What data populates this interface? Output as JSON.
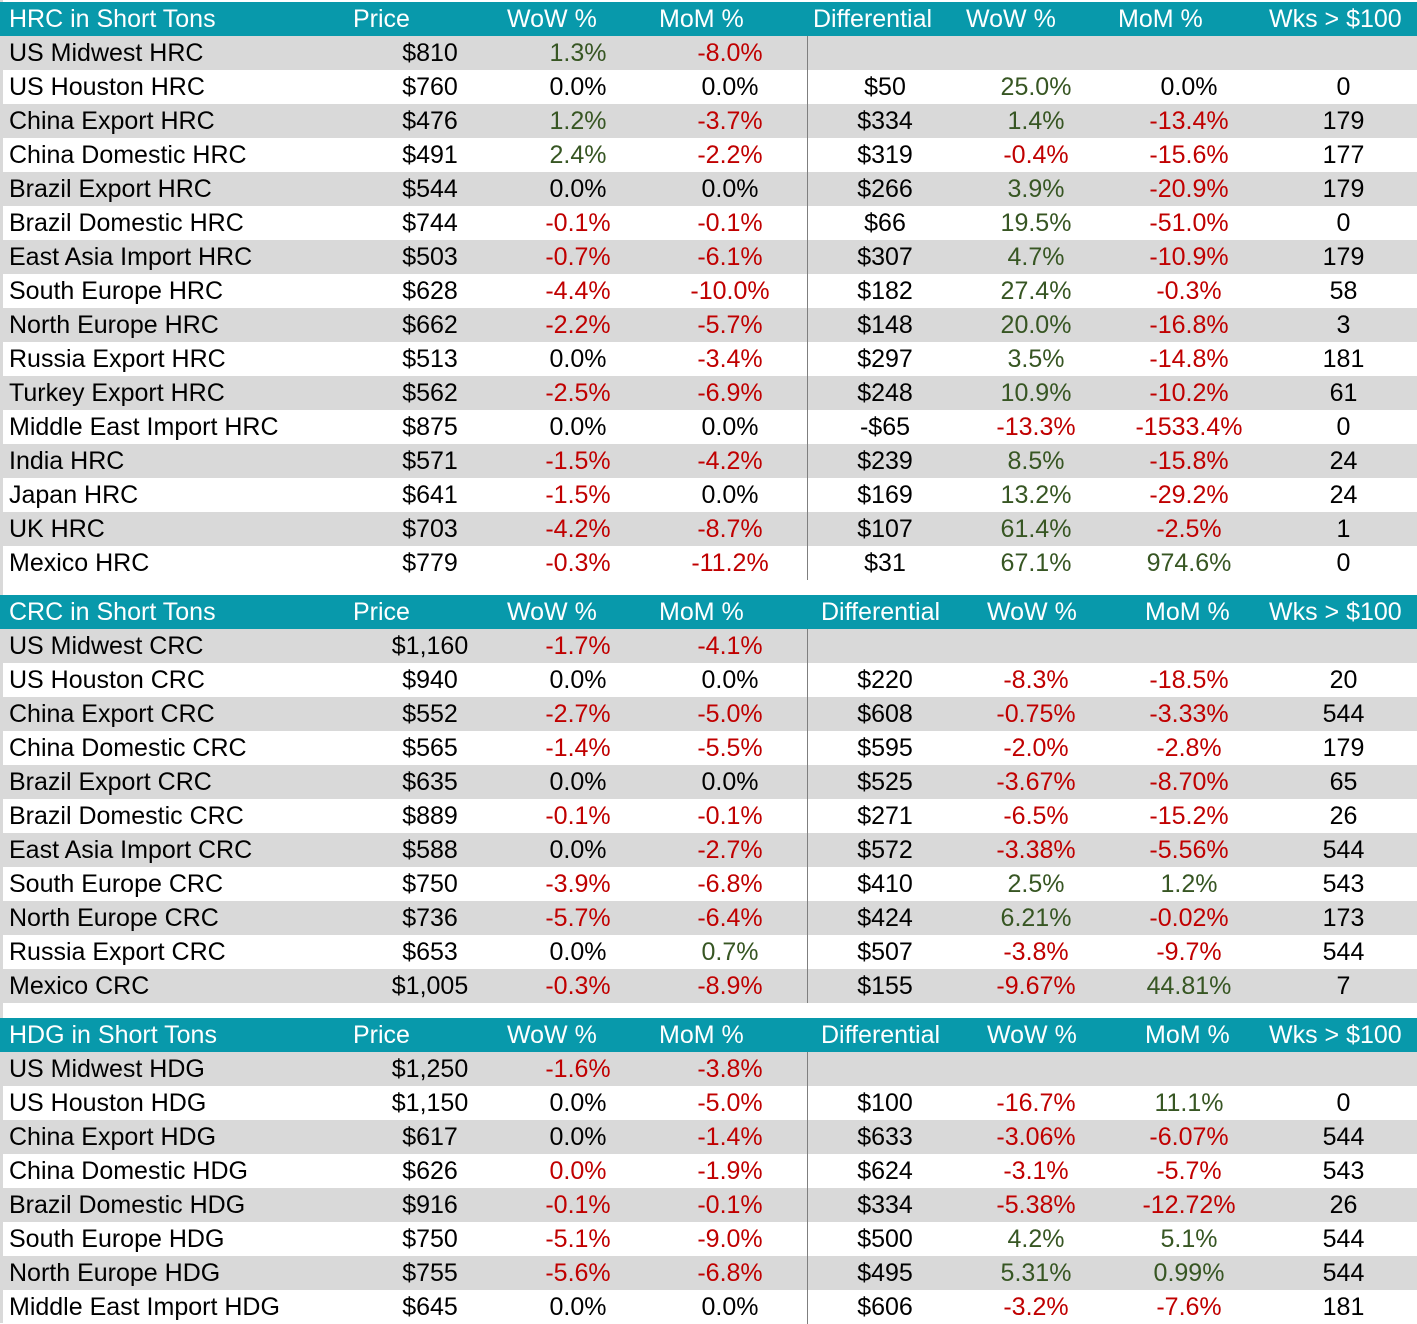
{
  "colors": {
    "header_bg": "#0899AB",
    "alt_row": "#d9d9d9",
    "positive": "#375623",
    "negative": "#c00000"
  },
  "columns": {
    "price": "Price",
    "wow": "WoW %",
    "mom": "MoM %",
    "differential": "Differential",
    "wow2": "WoW %",
    "mom2": "MoM %",
    "wks": "Wks > $100"
  },
  "hrc": {
    "title": "HRC in Short Tons",
    "rows": [
      {
        "name": "US Midwest HRC",
        "price": "$810",
        "wow": "1.3%",
        "mom": "-8.0%",
        "diff": "",
        "wow2": "",
        "mom2": "",
        "wks": ""
      },
      {
        "name": "US Houston HRC",
        "price": "$760",
        "wow": "0.0%",
        "mom": "0.0%",
        "diff": "$50",
        "wow2": "25.0%",
        "mom2": "0.0%",
        "wks": "0"
      },
      {
        "name": "China Export HRC",
        "price": "$476",
        "wow": "1.2%",
        "mom": "-3.7%",
        "diff": "$334",
        "wow2": "1.4%",
        "mom2": "-13.4%",
        "wks": "179"
      },
      {
        "name": "China Domestic HRC",
        "price": "$491",
        "wow": "2.4%",
        "mom": "-2.2%",
        "diff": "$319",
        "wow2": "-0.4%",
        "mom2": "-15.6%",
        "wks": "177"
      },
      {
        "name": "Brazil Export HRC",
        "price": "$544",
        "wow": "0.0%",
        "mom": "0.0%",
        "diff": "$266",
        "wow2": "3.9%",
        "mom2": "-20.9%",
        "wks": "179"
      },
      {
        "name": "Brazil Domestic HRC",
        "price": "$744",
        "wow": "-0.1%",
        "mom": "-0.1%",
        "diff": "$66",
        "wow2": "19.5%",
        "mom2": "-51.0%",
        "wks": "0"
      },
      {
        "name": "East Asia Import HRC",
        "price": "$503",
        "wow": "-0.7%",
        "mom": "-6.1%",
        "diff": "$307",
        "wow2": "4.7%",
        "mom2": "-10.9%",
        "wks": "179"
      },
      {
        "name": "South Europe HRC",
        "price": "$628",
        "wow": "-4.4%",
        "mom": "-10.0%",
        "diff": "$182",
        "wow2": "27.4%",
        "mom2": "-0.3%",
        "wks": "58"
      },
      {
        "name": "North Europe HRC",
        "price": "$662",
        "wow": "-2.2%",
        "mom": "-5.7%",
        "diff": "$148",
        "wow2": "20.0%",
        "mom2": "-16.8%",
        "wks": "3"
      },
      {
        "name": "Russia Export HRC",
        "price": "$513",
        "wow": "0.0%",
        "mom": "-3.4%",
        "diff": "$297",
        "wow2": "3.5%",
        "mom2": "-14.8%",
        "wks": "181"
      },
      {
        "name": "Turkey Export HRC",
        "price": "$562",
        "wow": "-2.5%",
        "mom": "-6.9%",
        "diff": "$248",
        "wow2": "10.9%",
        "mom2": "-10.2%",
        "wks": "61"
      },
      {
        "name": "Middle East Import HRC",
        "price": "$875",
        "wow": "0.0%",
        "mom": "0.0%",
        "diff": "-$65",
        "wow2": "-13.3%",
        "mom2": "-1533.4%",
        "wks": "0"
      },
      {
        "name": "India HRC",
        "price": "$571",
        "wow": "-1.5%",
        "mom": "-4.2%",
        "diff": "$239",
        "wow2": "8.5%",
        "mom2": "-15.8%",
        "wks": "24"
      },
      {
        "name": "Japan HRC",
        "price": "$641",
        "wow": "-1.5%",
        "mom": "0.0%",
        "diff": "$169",
        "wow2": "13.2%",
        "mom2": "-29.2%",
        "wks": "24"
      },
      {
        "name": "UK HRC",
        "price": "$703",
        "wow": "-4.2%",
        "mom": "-8.7%",
        "diff": "$107",
        "wow2": "61.4%",
        "mom2": "-2.5%",
        "wks": "1"
      },
      {
        "name": "Mexico HRC",
        "price": "$779",
        "wow": "-0.3%",
        "mom": "-11.2%",
        "diff": "$31",
        "wow2": "67.1%",
        "mom2": "974.6%",
        "wks": "0"
      }
    ]
  },
  "crc": {
    "title": "CRC in Short Tons",
    "rows": [
      {
        "name": "US Midwest CRC",
        "price": "$1,160",
        "wow": "-1.7%",
        "mom": "-4.1%",
        "diff": "",
        "wow2": "",
        "mom2": "",
        "wks": ""
      },
      {
        "name": "US Houston CRC",
        "price": "$940",
        "wow": "0.0%",
        "mom": "0.0%",
        "diff": "$220",
        "wow2": "-8.3%",
        "mom2": "-18.5%",
        "wks": "20"
      },
      {
        "name": "China Export CRC",
        "price": "$552",
        "wow": "-2.7%",
        "mom": "-5.0%",
        "diff": "$608",
        "wow2": "-0.75%",
        "mom2": "-3.33%",
        "wks": "544"
      },
      {
        "name": "China Domestic CRC",
        "price": "$565",
        "wow": "-1.4%",
        "mom": "-5.5%",
        "diff": "$595",
        "wow2": "-2.0%",
        "mom2": "-2.8%",
        "wks": "179"
      },
      {
        "name": "Brazil Export CRC",
        "price": "$635",
        "wow": "0.0%",
        "mom": "0.0%",
        "diff": "$525",
        "wow2": "-3.67%",
        "mom2": "-8.70%",
        "wks": "65"
      },
      {
        "name": "Brazil Domestic CRC",
        "price": "$889",
        "wow": "-0.1%",
        "mom": "-0.1%",
        "diff": "$271",
        "wow2": "-6.5%",
        "mom2": "-15.2%",
        "wks": "26"
      },
      {
        "name": "East Asia Import CRC",
        "price": "$588",
        "wow": "0.0%",
        "mom": "-2.7%",
        "diff": "$572",
        "wow2": "-3.38%",
        "mom2": "-5.56%",
        "wks": "544"
      },
      {
        "name": "South Europe CRC",
        "price": "$750",
        "wow": "-3.9%",
        "mom": "-6.8%",
        "diff": "$410",
        "wow2": "2.5%",
        "mom2": "1.2%",
        "wks": "543"
      },
      {
        "name": "North Europe CRC",
        "price": "$736",
        "wow": "-5.7%",
        "mom": "-6.4%",
        "diff": "$424",
        "wow2": "6.21%",
        "mom2": "-0.02%",
        "wks": "173"
      },
      {
        "name": "Russia Export CRC",
        "price": "$653",
        "wow": "0.0%",
        "mom": "0.7%",
        "diff": "$507",
        "wow2": "-3.8%",
        "mom2": "-9.7%",
        "wks": "544"
      },
      {
        "name": "Mexico CRC",
        "price": "$1,005",
        "wow": "-0.3%",
        "mom": "-8.9%",
        "diff": "$155",
        "wow2": "-9.67%",
        "mom2": "44.81%",
        "wks": "7"
      }
    ]
  },
  "hdg": {
    "title": "HDG in Short Tons",
    "rows": [
      {
        "name": "US Midwest HDG",
        "price": "$1,250",
        "wow": "-1.6%",
        "mom": "-3.8%",
        "diff": "",
        "wow2": "",
        "mom2": "",
        "wks": ""
      },
      {
        "name": "US Houston HDG",
        "price": "$1,150",
        "wow": "0.0%",
        "mom": "-5.0%",
        "diff": "$100",
        "wow2": "-16.7%",
        "mom2": "11.1%",
        "wks": "0"
      },
      {
        "name": "China Export HDG",
        "price": "$617",
        "wow": "0.0%",
        "mom": "-1.4%",
        "diff": "$633",
        "wow2": "-3.06%",
        "mom2": "-6.07%",
        "wks": "544"
      },
      {
        "name": "China Domestic HDG",
        "price": "$626",
        "wow": "0.0%",
        "wow_color": "neg",
        "mom": "-1.9%",
        "diff": "$624",
        "wow2": "-3.1%",
        "mom2": "-5.7%",
        "wks": "543"
      },
      {
        "name": "Brazil Domestic HDG",
        "price": "$916",
        "wow": "-0.1%",
        "mom": "-0.1%",
        "diff": "$334",
        "wow2": "-5.38%",
        "mom2": "-12.72%",
        "wks": "26"
      },
      {
        "name": "South Europe HDG",
        "price": "$750",
        "wow": "-5.1%",
        "mom": "-9.0%",
        "diff": "$500",
        "wow2": "4.2%",
        "mom2": "5.1%",
        "wks": "544"
      },
      {
        "name": "North Europe HDG",
        "price": "$755",
        "wow": "-5.6%",
        "mom": "-6.8%",
        "diff": "$495",
        "wow2": "5.31%",
        "mom2": "0.99%",
        "wks": "544"
      },
      {
        "name": "Middle East Import HDG",
        "price": "$645",
        "wow": "0.0%",
        "mom": "0.0%",
        "diff": "$606",
        "wow2": "-3.2%",
        "mom2": "-7.6%",
        "wks": "181"
      }
    ]
  }
}
